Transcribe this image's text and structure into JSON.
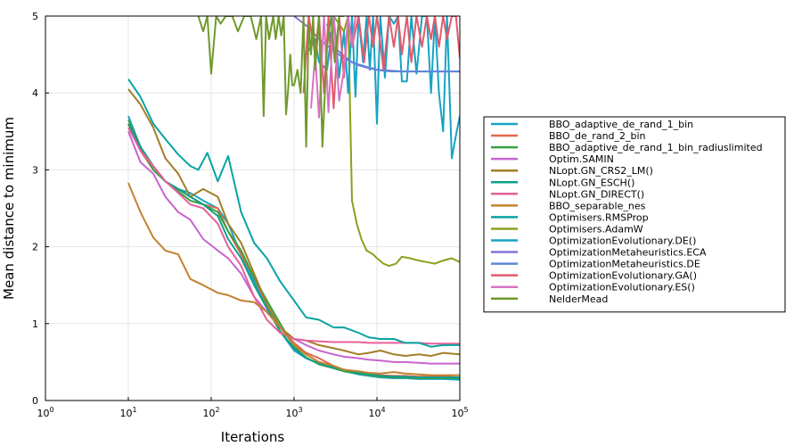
{
  "chart_data": {
    "type": "line",
    "title": "",
    "xlabel": "Iterations",
    "ylabel": "Mean distance to minimum",
    "x_scale": "log",
    "xlim": [
      1,
      100000
    ],
    "ylim": [
      0,
      5
    ],
    "x_ticks": [
      {
        "base": "10",
        "exp": "0"
      },
      {
        "base": "10",
        "exp": "1"
      },
      {
        "base": "10",
        "exp": "2"
      },
      {
        "base": "10",
        "exp": "3"
      },
      {
        "base": "10",
        "exp": "4"
      },
      {
        "base": "10",
        "exp": "5"
      }
    ],
    "y_ticks": [
      "0",
      "1",
      "2",
      "3",
      "4",
      "5"
    ],
    "grid": true,
    "legend_position": "outside-right",
    "series": [
      {
        "name": "BBO_adaptive_de_rand_1_bin",
        "color": "#1ba3c6",
        "x": [
          10,
          14,
          20,
          28,
          40,
          56,
          80,
          120,
          160,
          230,
          330,
          470,
          680,
          1000,
          1400,
          2000,
          3000,
          4000,
          6000,
          8000,
          11000,
          16000,
          22000,
          32000,
          45000,
          63000,
          100000
        ],
        "y": [
          3.7,
          3.3,
          3.0,
          2.85,
          2.75,
          2.7,
          2.6,
          2.5,
          2.3,
          1.9,
          1.55,
          1.2,
          0.9,
          0.65,
          0.55,
          0.48,
          0.42,
          0.38,
          0.34,
          0.32,
          0.3,
          0.29,
          0.29,
          0.28,
          0.28,
          0.28,
          0.27
        ]
      },
      {
        "name": "BBO_de_rand_2_bin",
        "color": "#e2684f",
        "x": [
          10,
          14,
          20,
          28,
          40,
          56,
          80,
          120,
          160,
          230,
          330,
          470,
          680,
          1000,
          1400,
          2000,
          3000,
          4000,
          6000,
          8000,
          11000,
          16000,
          22000,
          32000,
          45000,
          63000,
          100000
        ],
        "y": [
          3.6,
          3.25,
          3.0,
          2.85,
          2.75,
          2.65,
          2.55,
          2.5,
          2.2,
          1.9,
          1.6,
          1.25,
          0.95,
          0.75,
          0.62,
          0.55,
          0.45,
          0.4,
          0.37,
          0.35,
          0.33,
          0.32,
          0.32,
          0.31,
          0.31,
          0.31,
          0.3
        ]
      },
      {
        "name": "BBO_adaptive_de_rand_1_bin_radiuslimited",
        "color": "#3aa040",
        "x": [
          10,
          14,
          20,
          28,
          40,
          56,
          80,
          120,
          160,
          230,
          330,
          470,
          680,
          1000,
          1400,
          2000,
          3000,
          4000,
          6000,
          8000,
          11000,
          16000,
          22000,
          32000,
          45000,
          63000,
          100000
        ],
        "y": [
          3.65,
          3.3,
          3.0,
          2.85,
          2.72,
          2.6,
          2.55,
          2.45,
          2.2,
          1.95,
          1.6,
          1.3,
          1.0,
          0.7,
          0.56,
          0.47,
          0.42,
          0.38,
          0.35,
          0.33,
          0.31,
          0.3,
          0.3,
          0.29,
          0.29,
          0.29,
          0.29
        ]
      },
      {
        "name": "Optim.SAMIN",
        "color": "#c764cf",
        "x": [
          10,
          14,
          20,
          28,
          40,
          56,
          80,
          120,
          160,
          230,
          330,
          470,
          680,
          1000,
          1400,
          2000,
          3000,
          4000,
          6000,
          8000,
          11000,
          16000,
          22000,
          32000,
          45000,
          63000,
          100000
        ],
        "y": [
          3.5,
          3.1,
          2.95,
          2.65,
          2.45,
          2.35,
          2.1,
          1.95,
          1.85,
          1.65,
          1.35,
          1.15,
          0.95,
          0.8,
          0.72,
          0.65,
          0.6,
          0.57,
          0.55,
          0.53,
          0.52,
          0.5,
          0.5,
          0.49,
          0.48,
          0.48,
          0.48
        ]
      },
      {
        "name": "NLopt.GN_CRS2_LM()",
        "color": "#a27e27",
        "x": [
          10,
          14,
          20,
          28,
          40,
          56,
          80,
          120,
          160,
          230,
          330,
          470,
          680,
          1000,
          1400,
          2000,
          3000,
          4000,
          6000,
          8000,
          11000,
          16000,
          22000,
          32000,
          45000,
          63000,
          100000
        ],
        "y": [
          4.05,
          3.85,
          3.55,
          3.15,
          2.95,
          2.65,
          2.75,
          2.65,
          2.3,
          2.05,
          1.65,
          1.25,
          0.95,
          0.8,
          0.78,
          0.72,
          0.68,
          0.65,
          0.6,
          0.62,
          0.65,
          0.6,
          0.58,
          0.6,
          0.58,
          0.62,
          0.6
        ]
      },
      {
        "name": "NLopt.GN_ESCH()",
        "color": "#0d9f8c",
        "x": [
          10,
          14,
          20,
          28,
          40,
          56,
          80,
          120,
          160,
          230,
          330,
          470,
          680,
          1000,
          1400,
          2000,
          3000,
          4000,
          6000,
          8000,
          11000,
          16000,
          22000,
          32000,
          45000,
          63000,
          100000
        ],
        "y": [
          3.6,
          3.3,
          3.05,
          2.85,
          2.75,
          2.65,
          2.55,
          2.4,
          2.1,
          1.85,
          1.5,
          1.2,
          0.9,
          0.68,
          0.55,
          0.48,
          0.43,
          0.4,
          0.36,
          0.34,
          0.32,
          0.31,
          0.31,
          0.3,
          0.3,
          0.3,
          0.3
        ]
      },
      {
        "name": "NLopt.GN_DIRECT()",
        "color": "#e6609a",
        "x": [
          10,
          14,
          20,
          28,
          40,
          56,
          80,
          120,
          160,
          230,
          330,
          470,
          680,
          1000,
          1400,
          2000,
          3000,
          4000,
          6000,
          8000,
          11000,
          16000,
          22000,
          32000,
          45000,
          63000,
          100000
        ],
        "y": [
          3.55,
          3.25,
          3.05,
          2.85,
          2.7,
          2.55,
          2.5,
          2.3,
          2.0,
          1.75,
          1.35,
          1.05,
          0.88,
          0.8,
          0.78,
          0.77,
          0.76,
          0.76,
          0.76,
          0.75,
          0.75,
          0.75,
          0.75,
          0.75,
          0.74,
          0.74,
          0.74
        ]
      },
      {
        "name": "BBO_separable_nes",
        "color": "#c2822f",
        "x": [
          10,
          14,
          20,
          28,
          40,
          56,
          80,
          120,
          160,
          230,
          330,
          470,
          680,
          1000,
          1400,
          2000,
          3000,
          4000,
          6000,
          8000,
          11000,
          16000,
          22000,
          32000,
          45000,
          63000,
          100000
        ],
        "y": [
          2.83,
          2.45,
          2.12,
          1.95,
          1.9,
          1.58,
          1.5,
          1.4,
          1.37,
          1.3,
          1.28,
          1.15,
          0.95,
          0.72,
          0.6,
          0.5,
          0.45,
          0.4,
          0.38,
          0.36,
          0.35,
          0.37,
          0.35,
          0.34,
          0.33,
          0.33,
          0.33
        ]
      },
      {
        "name": "Optimisers.RMSProp",
        "color": "#0aa3a3",
        "x": [
          10,
          14,
          20,
          28,
          40,
          56,
          70,
          90,
          120,
          160,
          230,
          330,
          470,
          680,
          1000,
          1400,
          2000,
          3000,
          4000,
          6000,
          8000,
          11000,
          16000,
          22000,
          32000,
          45000,
          63000,
          100000
        ],
        "y": [
          4.18,
          3.95,
          3.6,
          3.4,
          3.2,
          3.05,
          3.0,
          3.22,
          2.85,
          3.18,
          2.45,
          2.05,
          1.85,
          1.55,
          1.3,
          1.08,
          1.05,
          0.95,
          0.95,
          0.88,
          0.82,
          0.8,
          0.8,
          0.75,
          0.75,
          0.7,
          0.72,
          0.72
        ]
      },
      {
        "name": "Optimisers.AdamW",
        "color": "#87a21e",
        "x": [
          3000,
          4000,
          4500,
          5000,
          5700,
          6500,
          7500,
          9000,
          10000,
          12000,
          14000,
          17000,
          20000,
          25000,
          32000,
          40000,
          50000,
          63000,
          80000,
          100000
        ],
        "y": [
          5.0,
          4.8,
          5.0,
          2.6,
          2.3,
          2.1,
          1.95,
          1.9,
          1.85,
          1.78,
          1.75,
          1.78,
          1.87,
          1.85,
          1.82,
          1.8,
          1.78,
          1.82,
          1.85,
          1.8
        ]
      },
      {
        "name": "OptimizationEvolutionary.DE()",
        "color": "#17a3c4",
        "x": [
          1400,
          1800,
          2000,
          2500,
          3000,
          3500,
          4000,
          4500,
          5000,
          5500,
          6000,
          6800,
          7500,
          8200,
          9000,
          10000,
          11000,
          12500,
          14000,
          16000,
          18000,
          20000,
          23000,
          26000,
          30000,
          35000,
          40000,
          45000,
          50000,
          56000,
          63000,
          70000,
          80000,
          90000,
          100000
        ],
        "y": [
          4.5,
          4.7,
          4.4,
          4.3,
          5.0,
          4.2,
          4.8,
          4.0,
          5.0,
          3.95,
          5.0,
          4.4,
          5.0,
          4.3,
          5.0,
          3.6,
          5.0,
          4.2,
          5.0,
          4.9,
          5.0,
          4.15,
          4.15,
          5.0,
          4.25,
          5.0,
          5.0,
          4.0,
          5.0,
          4.0,
          3.5,
          5.0,
          3.15,
          3.45,
          3.7
        ]
      },
      {
        "name": "OptimizationMetaheuristics.ECA",
        "color": "#8773d6",
        "x": [
          1000,
          1500,
          2000,
          3000,
          4000,
          5000,
          6000,
          8000,
          10000,
          15000,
          20000,
          30000,
          40000,
          60000,
          100000
        ],
        "y": [
          5.0,
          4.85,
          4.7,
          4.55,
          4.45,
          4.4,
          4.36,
          4.32,
          4.3,
          4.29,
          4.28,
          4.28,
          4.28,
          4.28,
          4.28
        ]
      },
      {
        "name": "OptimizationMetaheuristics.DE",
        "color": "#5d86d8",
        "x": [
          2500,
          3000,
          4000,
          5000,
          6000,
          7000,
          8000,
          9000,
          10000,
          12000,
          15000,
          20000,
          30000,
          40000,
          60000,
          100000
        ],
        "y": [
          4.9,
          4.6,
          4.48,
          4.4,
          4.37,
          4.35,
          4.33,
          4.32,
          4.3,
          4.29,
          4.28,
          4.28,
          4.28,
          4.28,
          4.28,
          4.28
        ]
      },
      {
        "name": "OptimizationEvolutionary.GA()",
        "color": "#e15b6e",
        "x": [
          1300,
          1500,
          1800,
          2000,
          2300,
          2600,
          3000,
          3500,
          4000,
          4500,
          5000,
          6000,
          7000,
          8000,
          9000,
          10000,
          12000,
          14000,
          16000,
          18000,
          20000,
          23000,
          26000,
          30000,
          35000,
          40000,
          45000,
          50000,
          56000,
          63000,
          70000,
          80000,
          90000,
          100000
        ],
        "y": [
          4.0,
          5.0,
          4.5,
          5.0,
          4.0,
          5.0,
          3.8,
          5.0,
          4.2,
          5.0,
          4.6,
          5.0,
          4.4,
          5.0,
          4.6,
          5.0,
          4.3,
          5.0,
          4.6,
          5.0,
          4.5,
          5.0,
          4.4,
          5.0,
          4.6,
          5.0,
          4.7,
          5.0,
          4.6,
          5.0,
          4.7,
          5.0,
          5.0,
          4.45
        ]
      },
      {
        "name": "OptimizationEvolutionary.ES()",
        "color": "#d873c0",
        "x": [
          1600,
          1800,
          2000,
          2300,
          2600,
          3000,
          3500,
          4000,
          4500,
          5000,
          5500,
          6000
        ],
        "y": [
          3.8,
          4.5,
          3.68,
          5.0,
          3.75,
          5.0,
          3.9,
          4.3,
          5.0,
          4.6,
          5.0,
          5.0
        ]
      },
      {
        "name": "NelderMead",
        "color": "#6f9a2c",
        "x": [
          70,
          80,
          90,
          100,
          115,
          130,
          150,
          180,
          210,
          250,
          300,
          350,
          400,
          430,
          460,
          500,
          560,
          600,
          650,
          700,
          750,
          800,
          850,
          900,
          950,
          1000,
          1100,
          1200,
          1300,
          1400,
          1500,
          1600,
          1700,
          1800,
          2000,
          2200,
          2500,
          2800,
          3100,
          3500,
          4000
        ],
        "y": [
          5.0,
          4.8,
          5.0,
          4.25,
          5.0,
          4.9,
          5.0,
          5.0,
          4.8,
          5.0,
          5.0,
          4.7,
          5.0,
          3.7,
          5.0,
          4.7,
          5.0,
          4.7,
          5.0,
          4.75,
          5.0,
          3.72,
          4.05,
          4.5,
          4.1,
          4.1,
          4.3,
          4.0,
          5.0,
          3.3,
          4.9,
          4.5,
          5.0,
          4.3,
          5.0,
          3.3,
          4.6,
          5.0,
          4.4,
          5.0,
          5.0
        ]
      }
    ]
  }
}
